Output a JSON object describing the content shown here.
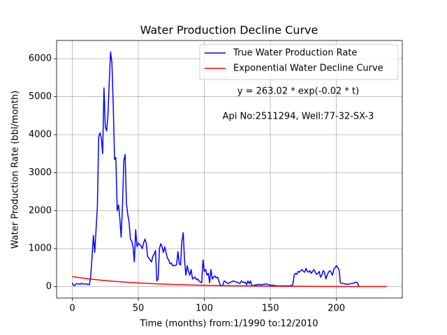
{
  "chart_data": {
    "type": "line",
    "title": "Water Production Decline Curve",
    "x_label": "Time (months) from:1/1990 to:12/2010",
    "y_label": "Water Production Rate (bbl/month)",
    "annotations": [
      "y = 263.02 * exp(-0.02 * t)",
      "Api No:2511294, Well:77-32-SX-3"
    ],
    "xlim": [
      -11.9,
      249.9
    ],
    "ylim": [
      -300,
      6480
    ],
    "xticks": [
      0,
      50,
      100,
      150,
      200
    ],
    "yticks": [
      0,
      1000,
      2000,
      3000,
      4000,
      5000,
      6000
    ],
    "grid": true,
    "legend": "upper right",
    "series": [
      {
        "name": "True Water Production Rate",
        "color": "#0000ff",
        "x": [
          0,
          1,
          2,
          3,
          5,
          6,
          7,
          8,
          10,
          12,
          13,
          14,
          15,
          16,
          17,
          18,
          19,
          20,
          21,
          22,
          23,
          24,
          25,
          26,
          27,
          28,
          29,
          30,
          31,
          32,
          33,
          34,
          35,
          36,
          37,
          38,
          39,
          40,
          41,
          42,
          43,
          44,
          45,
          46,
          47,
          48,
          49,
          50,
          51,
          52,
          53,
          54,
          55,
          56,
          57,
          58,
          59,
          60,
          61,
          62,
          63,
          64,
          65,
          66,
          67,
          68,
          69,
          70,
          71,
          72,
          73,
          74,
          75,
          76,
          77,
          78,
          79,
          80,
          81,
          82,
          83,
          84,
          85,
          86,
          87,
          88,
          89,
          90,
          91,
          92,
          93,
          94,
          95,
          96,
          97,
          98,
          99,
          100,
          101,
          102,
          103,
          104,
          105,
          106,
          107,
          108,
          109,
          110,
          111,
          112,
          113,
          114,
          115,
          116,
          117,
          118,
          120,
          122,
          124,
          126,
          127,
          128,
          130,
          131,
          132,
          133,
          134,
          135,
          136,
          137,
          138,
          140,
          141,
          143,
          145,
          147,
          148,
          150,
          153,
          155,
          160,
          165,
          167,
          168,
          169,
          170,
          171,
          172,
          173,
          174,
          175,
          176,
          177,
          178,
          179,
          180,
          181,
          182,
          183,
          184,
          185,
          186,
          187,
          188,
          189,
          190,
          191,
          192,
          193,
          194,
          195,
          196,
          197,
          198,
          199,
          200,
          201,
          202,
          203,
          205,
          207,
          209,
          211,
          213,
          215,
          216,
          217
        ],
        "values": [
          100,
          30,
          30,
          80,
          70,
          60,
          90,
          70,
          70,
          60,
          50,
          300,
          800,
          1350,
          900,
          1500,
          2100,
          3950,
          4050,
          3900,
          3500,
          5230,
          4200,
          4100,
          4500,
          5400,
          6180,
          5900,
          4800,
          3350,
          3400,
          2000,
          2150,
          1800,
          1300,
          2100,
          3300,
          3480,
          2200,
          1900,
          1700,
          1250,
          1200,
          1050,
          650,
          1500,
          1050,
          1150,
          1100,
          1080,
          1000,
          1150,
          1250,
          1150,
          800,
          750,
          700,
          650,
          800,
          850,
          950,
          150,
          200,
          1000,
          1130,
          1050,
          900,
          1050,
          900,
          750,
          700,
          600,
          620,
          550,
          560,
          550,
          580,
          920,
          600,
          570,
          1200,
          1420,
          700,
          300,
          550,
          400,
          300,
          450,
          200,
          230,
          250,
          180,
          200,
          150,
          120,
          100,
          700,
          400,
          450,
          300,
          350,
          100,
          450,
          200,
          250,
          280,
          230,
          250,
          150,
          50,
          20,
          30,
          150,
          130,
          100,
          80,
          120,
          150,
          120,
          100,
          80,
          150,
          100,
          120,
          50,
          150,
          80,
          150,
          20,
          30,
          40,
          50,
          60,
          50,
          60,
          70,
          60,
          40,
          30,
          20,
          20,
          20,
          50,
          300,
          350,
          320,
          400,
          380,
          420,
          450,
          400,
          380,
          480,
          400,
          380,
          420,
          350,
          400,
          450,
          380,
          320,
          350,
          400,
          250,
          300,
          420,
          380,
          200,
          300,
          380,
          420,
          380,
          300,
          450,
          500,
          550,
          500,
          450,
          100,
          80,
          70,
          60,
          80,
          90,
          120,
          100,
          0
        ]
      },
      {
        "name": "Exponential Water Decline Curve",
        "color": "#ff0000",
        "x": [
          0,
          10,
          20,
          30,
          40,
          50,
          60,
          70,
          80,
          90,
          100,
          110,
          120,
          130,
          140,
          150,
          160,
          170,
          180,
          190,
          200,
          210,
          220,
          230,
          238
        ],
        "values": [
          263,
          215,
          176,
          144,
          118,
          97,
          79,
          65,
          53,
          43,
          35,
          29,
          24,
          19,
          16,
          13,
          11,
          9,
          7,
          6,
          5,
          4,
          3.3,
          2.6,
          2.25
        ]
      }
    ]
  }
}
